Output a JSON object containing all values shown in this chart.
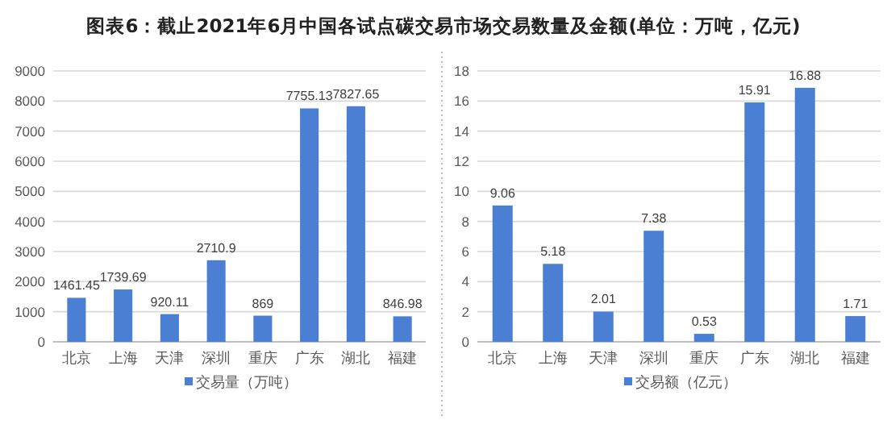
{
  "chart_data": [
    {
      "type": "bar",
      "title": "图表6：截止2021年6月中国各试点碳交易市场交易数量及金额(单位：万吨，亿元)",
      "categories": [
        "北京",
        "上海",
        "天津",
        "深圳",
        "重庆",
        "广东",
        "湖北",
        "福建"
      ],
      "series": [
        {
          "name": "交易量（万吨）",
          "color": "#4a7fd4",
          "values": [
            1461.45,
            1739.69,
            920.11,
            2710.9,
            869,
            7755.13,
            7827.65,
            846.98
          ]
        }
      ],
      "ylim": [
        0,
        9000
      ],
      "yticks": [
        0,
        1000,
        2000,
        3000,
        4000,
        5000,
        6000,
        7000,
        8000,
        9000
      ],
      "grid": "y",
      "legend": "bottom",
      "data_labels": true
    },
    {
      "type": "bar",
      "categories": [
        "北京",
        "上海",
        "天津",
        "深圳",
        "重庆",
        "广东",
        "湖北",
        "福建"
      ],
      "series": [
        {
          "name": "交易额（亿元）",
          "color": "#4a7fd4",
          "values": [
            9.06,
            5.18,
            2.01,
            7.38,
            0.53,
            15.91,
            16.88,
            1.71
          ]
        }
      ],
      "ylim": [
        0,
        18
      ],
      "yticks": [
        0,
        2,
        4,
        6,
        8,
        10,
        12,
        14,
        16,
        18
      ],
      "grid": "y",
      "legend": "bottom",
      "data_labels": true
    }
  ]
}
